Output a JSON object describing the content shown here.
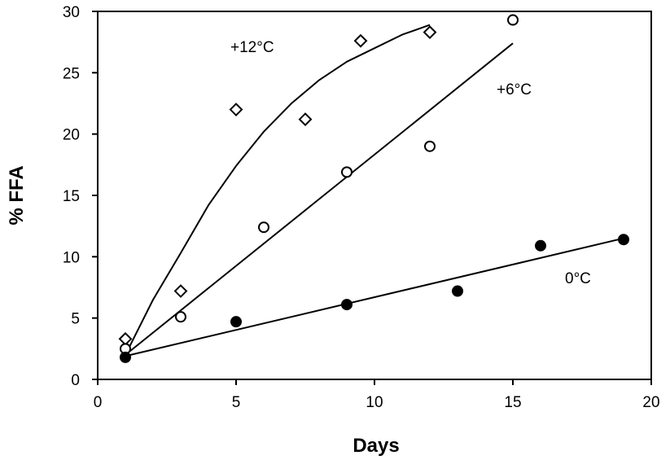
{
  "chart_data": {
    "type": "scatter",
    "title": "",
    "xlabel": "Days",
    "ylabel": "% FFA",
    "xlim": [
      0,
      20
    ],
    "ylim": [
      0,
      30
    ],
    "xticks": [
      0,
      5,
      10,
      15,
      20
    ],
    "yticks": [
      0,
      5,
      10,
      15,
      20,
      25,
      30
    ],
    "grid": false,
    "series": [
      {
        "name": "+12°C",
        "marker": "diamond-open",
        "points": [
          [
            1,
            3.3
          ],
          [
            3,
            7.2
          ],
          [
            5,
            22.0
          ],
          [
            7.5,
            21.2
          ],
          [
            9.5,
            27.6
          ],
          [
            12,
            28.3
          ]
        ],
        "fit": [
          [
            1,
            2.0
          ],
          [
            2,
            6.5
          ],
          [
            3,
            10.3
          ],
          [
            4,
            14.2
          ],
          [
            5,
            17.4
          ],
          [
            6,
            20.2
          ],
          [
            7,
            22.5
          ],
          [
            8,
            24.4
          ],
          [
            9,
            25.9
          ],
          [
            10,
            27.0
          ],
          [
            11,
            28.1
          ],
          [
            12,
            28.9
          ]
        ]
      },
      {
        "name": "+6°C",
        "marker": "circle-open",
        "points": [
          [
            1,
            2.5
          ],
          [
            3,
            5.1
          ],
          [
            6,
            12.4
          ],
          [
            9,
            16.9
          ],
          [
            12,
            19.0
          ],
          [
            15,
            29.3
          ]
        ],
        "fit": [
          [
            1,
            2.0
          ],
          [
            15,
            27.4
          ]
        ]
      },
      {
        "name": "0°C",
        "marker": "circle-filled",
        "points": [
          [
            1,
            1.8
          ],
          [
            5,
            4.7
          ],
          [
            9,
            6.1
          ],
          [
            13,
            7.2
          ],
          [
            16,
            10.9
          ],
          [
            19,
            11.4
          ]
        ],
        "fit": [
          [
            1,
            1.9
          ],
          [
            19,
            11.5
          ]
        ]
      }
    ],
    "annotations": [
      "+12°C",
      "+6°C",
      "0°C"
    ]
  }
}
